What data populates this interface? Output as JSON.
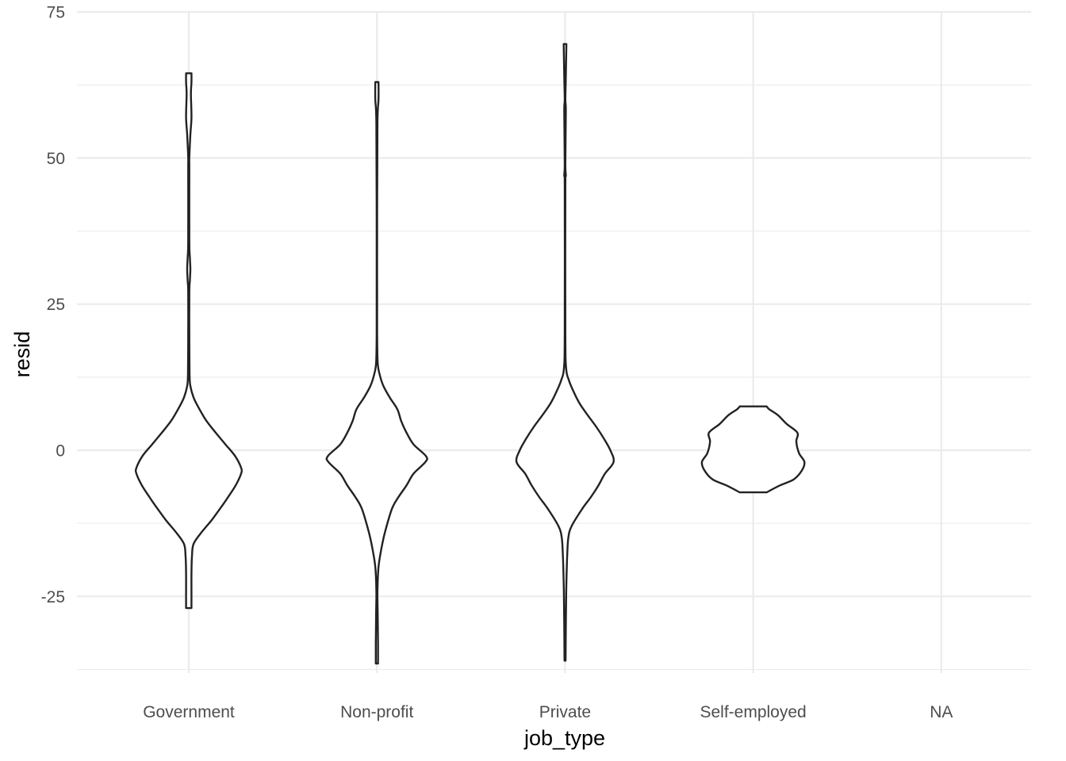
{
  "chart_data": {
    "type": "violin",
    "title": "",
    "xlabel": "job_type",
    "ylabel": "resid",
    "ylim": [
      -38.5,
      75
    ],
    "y_ticks": [
      -25,
      0,
      25,
      50,
      75
    ],
    "y_minor_ticks": [
      -37.5,
      -12.5,
      12.5,
      37.5,
      62.5
    ],
    "grid": true,
    "categories": [
      "Government",
      "Non-profit",
      "Private",
      "Self-employed",
      "NA"
    ],
    "series": [
      {
        "name": "Government",
        "min": -27,
        "max": 64.5,
        "profile": [
          [
            -27,
            0.05
          ],
          [
            -25,
            0.05
          ],
          [
            -21,
            0.05
          ],
          [
            -18,
            0.06
          ],
          [
            -16,
            0.09
          ],
          [
            -14,
            0.24
          ],
          [
            -12,
            0.42
          ],
          [
            -10,
            0.58
          ],
          [
            -8,
            0.73
          ],
          [
            -6,
            0.87
          ],
          [
            -4,
            0.97
          ],
          [
            -3,
            0.97
          ],
          [
            -1,
            0.86
          ],
          [
            1,
            0.68
          ],
          [
            3,
            0.5
          ],
          [
            5,
            0.33
          ],
          [
            7,
            0.2
          ],
          [
            9,
            0.09
          ],
          [
            11,
            0.03
          ],
          [
            13,
            0.015
          ],
          [
            20,
            0.01
          ],
          [
            27,
            0.01
          ],
          [
            29,
            0.02
          ],
          [
            31,
            0.03
          ],
          [
            33,
            0.02
          ],
          [
            36,
            0.01
          ],
          [
            48,
            0.01
          ],
          [
            50,
            0.01
          ],
          [
            54,
            0.03
          ],
          [
            57,
            0.05
          ],
          [
            61,
            0.04
          ],
          [
            63,
            0.05
          ],
          [
            64.5,
            0.05
          ]
        ]
      },
      {
        "name": "Non-profit",
        "min": -36.5,
        "max": 63,
        "profile": [
          [
            -36.5,
            0.02
          ],
          [
            -33,
            0.02
          ],
          [
            -28,
            0.015
          ],
          [
            -24,
            0.01
          ],
          [
            -20,
            0.03
          ],
          [
            -17,
            0.08
          ],
          [
            -14,
            0.15
          ],
          [
            -10,
            0.28
          ],
          [
            -8,
            0.4
          ],
          [
            -6,
            0.55
          ],
          [
            -4,
            0.68
          ],
          [
            -2,
            0.9
          ],
          [
            -1,
            0.91
          ],
          [
            1,
            0.68
          ],
          [
            3,
            0.55
          ],
          [
            5,
            0.45
          ],
          [
            7,
            0.38
          ],
          [
            9,
            0.24
          ],
          [
            11,
            0.12
          ],
          [
            13,
            0.05
          ],
          [
            15,
            0.015
          ],
          [
            20,
            0.005
          ],
          [
            40,
            0.005
          ],
          [
            56,
            0.01
          ],
          [
            60,
            0.03
          ],
          [
            63,
            0.03
          ]
        ]
      },
      {
        "name": "Private",
        "min": -36,
        "max": 69.5,
        "profile": [
          [
            -36,
            0.01
          ],
          [
            -30,
            0.015
          ],
          [
            -25,
            0.02
          ],
          [
            -21,
            0.03
          ],
          [
            -18,
            0.04
          ],
          [
            -15,
            0.06
          ],
          [
            -13,
            0.12
          ],
          [
            -10,
            0.32
          ],
          [
            -8,
            0.48
          ],
          [
            -6,
            0.62
          ],
          [
            -4,
            0.74
          ],
          [
            -2,
            0.9
          ],
          [
            0,
            0.84
          ],
          [
            2,
            0.72
          ],
          [
            4,
            0.58
          ],
          [
            6,
            0.42
          ],
          [
            8,
            0.27
          ],
          [
            10,
            0.16
          ],
          [
            12,
            0.07
          ],
          [
            14,
            0.02
          ],
          [
            20,
            0.006
          ],
          [
            45,
            0.006
          ],
          [
            47,
            0.015
          ],
          [
            49,
            0.006
          ],
          [
            58,
            0.015
          ],
          [
            60,
            0.006
          ],
          [
            64,
            0.015
          ],
          [
            67,
            0.02
          ],
          [
            69.5,
            0.025
          ]
        ]
      },
      {
        "name": "Self-employed",
        "min": -7.2,
        "max": 7.5,
        "profile": [
          [
            -7.2,
            0.25
          ],
          [
            -6,
            0.5
          ],
          [
            -5,
            0.75
          ],
          [
            -3.5,
            0.9
          ],
          [
            -2,
            0.95
          ],
          [
            -0.5,
            0.85
          ],
          [
            1.5,
            0.8
          ],
          [
            3,
            0.82
          ],
          [
            4.5,
            0.62
          ],
          [
            6,
            0.46
          ],
          [
            7,
            0.3
          ],
          [
            7.5,
            0.25
          ]
        ]
      }
    ]
  }
}
